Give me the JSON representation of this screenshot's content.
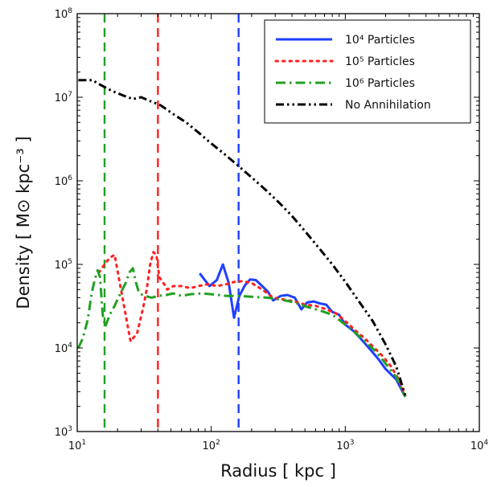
{
  "chart_data": {
    "type": "line",
    "xscale": "log",
    "yscale": "log",
    "xlim": [
      10,
      10000
    ],
    "ylim": [
      1000,
      100000000
    ],
    "xlabel": "Radius [ kpc ]",
    "ylabel": "Density [ M⊙ kpc⁻³ ]",
    "x_ticks": [
      {
        "base": "10",
        "exp": "1"
      },
      {
        "base": "10",
        "exp": "2"
      },
      {
        "base": "10",
        "exp": "3"
      },
      {
        "base": "10",
        "exp": "4"
      }
    ],
    "y_ticks": [
      {
        "base": "10",
        "exp": "3"
      },
      {
        "base": "10",
        "exp": "4"
      },
      {
        "base": "10",
        "exp": "5"
      },
      {
        "base": "10",
        "exp": "6"
      },
      {
        "base": "10",
        "exp": "7"
      },
      {
        "base": "10",
        "exp": "8"
      }
    ],
    "grid": false,
    "legend_position": "top-right",
    "series": [
      {
        "name": "10⁴ Particles",
        "color": "#1f3fff",
        "dash": "solid",
        "points": [
          [
            82,
            78000
          ],
          [
            97,
            55000
          ],
          [
            110,
            65000
          ],
          [
            122,
            100000
          ],
          [
            135,
            60000
          ],
          [
            148,
            23000
          ],
          [
            162,
            42000
          ],
          [
            178,
            56000
          ],
          [
            195,
            66000
          ],
          [
            215,
            65000
          ],
          [
            240,
            55000
          ],
          [
            265,
            47000
          ],
          [
            290,
            37000
          ],
          [
            330,
            42000
          ],
          [
            370,
            43000
          ],
          [
            420,
            40000
          ],
          [
            470,
            29000
          ],
          [
            520,
            35000
          ],
          [
            580,
            36000
          ],
          [
            650,
            34000
          ],
          [
            720,
            33000
          ],
          [
            800,
            27000
          ],
          [
            900,
            25000
          ],
          [
            1000,
            19000
          ],
          [
            1150,
            16000
          ],
          [
            1300,
            13000
          ],
          [
            1500,
            10000
          ],
          [
            1750,
            7500
          ],
          [
            2000,
            5600
          ],
          [
            2400,
            4200
          ],
          [
            2800,
            2600
          ]
        ]
      },
      {
        "name": "10⁵ Particles",
        "color": "#ff2020",
        "dash": "dotted",
        "points": [
          [
            14.5,
            80000
          ],
          [
            16,
            100000
          ],
          [
            17.5,
            120000
          ],
          [
            19,
            130000
          ],
          [
            25,
            12000
          ],
          [
            28,
            15000
          ],
          [
            31,
            30000
          ],
          [
            33,
            50000
          ],
          [
            35,
            100000
          ],
          [
            37,
            140000
          ],
          [
            39,
            130000
          ],
          [
            41,
            70000
          ],
          [
            44,
            60000
          ],
          [
            47,
            50000
          ],
          [
            52,
            55000
          ],
          [
            60,
            55000
          ],
          [
            70,
            52000
          ],
          [
            80,
            55000
          ],
          [
            95,
            58000
          ],
          [
            110,
            55000
          ],
          [
            130,
            58000
          ],
          [
            150,
            62000
          ],
          [
            170,
            63000
          ],
          [
            200,
            60000
          ],
          [
            240,
            50000
          ],
          [
            290,
            40000
          ],
          [
            350,
            38000
          ],
          [
            420,
            36000
          ],
          [
            500,
            33000
          ],
          [
            600,
            32000
          ],
          [
            720,
            29000
          ],
          [
            850,
            26000
          ],
          [
            1000,
            21000
          ],
          [
            1200,
            16000
          ],
          [
            1400,
            13000
          ],
          [
            1600,
            10500
          ],
          [
            1900,
            8000
          ],
          [
            2200,
            6000
          ],
          [
            2500,
            4200
          ],
          [
            2800,
            2700
          ]
        ]
      },
      {
        "name": "10⁶ Particles",
        "color": "#22a022",
        "dash": "dashdot",
        "points": [
          [
            10.2,
            10000
          ],
          [
            11,
            13000
          ],
          [
            12,
            22000
          ],
          [
            12.8,
            45000
          ],
          [
            13.5,
            65000
          ],
          [
            14.2,
            85000
          ],
          [
            14.8,
            70000
          ],
          [
            15.5,
            25000
          ],
          [
            16.2,
            18000
          ],
          [
            17.5,
            25000
          ],
          [
            19,
            32000
          ],
          [
            21,
            45000
          ],
          [
            23,
            60000
          ],
          [
            24.5,
            80000
          ],
          [
            26,
            90000
          ],
          [
            27.5,
            60000
          ],
          [
            29,
            45000
          ],
          [
            32,
            42000
          ],
          [
            36,
            40000
          ],
          [
            40,
            42000
          ],
          [
            46,
            43000
          ],
          [
            52,
            45000
          ],
          [
            60,
            42000
          ],
          [
            70,
            44000
          ],
          [
            85,
            45000
          ],
          [
            100,
            44000
          ],
          [
            130,
            42000
          ],
          [
            160,
            42000
          ],
          [
            200,
            41000
          ],
          [
            260,
            40000
          ],
          [
            330,
            38000
          ],
          [
            420,
            35000
          ],
          [
            520,
            31000
          ],
          [
            650,
            28000
          ],
          [
            800,
            25000
          ],
          [
            1000,
            19000
          ],
          [
            1200,
            15000
          ],
          [
            1400,
            12000
          ],
          [
            1700,
            9000
          ],
          [
            2000,
            6500
          ],
          [
            2400,
            4500
          ],
          [
            2800,
            2600
          ]
        ]
      },
      {
        "name": "No Annihilation",
        "color": "#000000",
        "dash": "dashdotdot",
        "points": [
          [
            10.2,
            16000000
          ],
          [
            11,
            16000000
          ],
          [
            13,
            16000000
          ],
          [
            15,
            14000000
          ],
          [
            18,
            12000000
          ],
          [
            22,
            10500000
          ],
          [
            26,
            9500000
          ],
          [
            30,
            10000000
          ],
          [
            35,
            9000000
          ],
          [
            42,
            8000000
          ],
          [
            52,
            6300000
          ],
          [
            65,
            5000000
          ],
          [
            80,
            3800000
          ],
          [
            100,
            2800000
          ],
          [
            125,
            2100000
          ],
          [
            160,
            1500000
          ],
          [
            200,
            1100000
          ],
          [
            250,
            800000
          ],
          [
            320,
            550000
          ],
          [
            400,
            380000
          ],
          [
            500,
            250000
          ],
          [
            630,
            160000
          ],
          [
            800,
            100000
          ],
          [
            1000,
            62000
          ],
          [
            1250,
            37000
          ],
          [
            1600,
            21000
          ],
          [
            2000,
            11000
          ],
          [
            2400,
            6000
          ],
          [
            2800,
            2700
          ]
        ]
      }
    ],
    "vertical_lines": [
      {
        "x": 16,
        "color": "#22a022"
      },
      {
        "x": 40,
        "color": "#ff2020"
      },
      {
        "x": 160,
        "color": "#1f3fff"
      }
    ]
  }
}
